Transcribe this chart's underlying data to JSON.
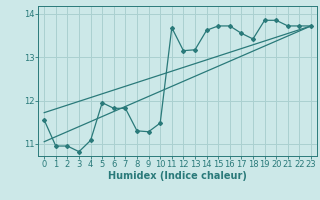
{
  "title": "",
  "xlabel": "Humidex (Indice chaleur)",
  "ylabel": "",
  "bg_color": "#cce8e8",
  "grid_color": "#aad0d0",
  "line_color": "#2a7a7a",
  "xlim": [
    -0.5,
    23.5
  ],
  "ylim": [
    10.72,
    14.18
  ],
  "yticks": [
    11,
    12,
    13,
    14
  ],
  "xticks": [
    0,
    1,
    2,
    3,
    4,
    5,
    6,
    7,
    8,
    9,
    10,
    11,
    12,
    13,
    14,
    15,
    16,
    17,
    18,
    19,
    20,
    21,
    22,
    23
  ],
  "scatter_x": [
    0,
    1,
    2,
    3,
    4,
    5,
    6,
    7,
    8,
    9,
    10,
    11,
    12,
    13,
    14,
    15,
    16,
    17,
    18,
    19,
    20,
    21,
    22,
    23
  ],
  "scatter_y": [
    11.55,
    10.95,
    10.95,
    10.82,
    11.08,
    11.95,
    11.82,
    11.82,
    11.3,
    11.28,
    11.48,
    13.68,
    13.15,
    13.17,
    13.62,
    13.72,
    13.72,
    13.55,
    13.42,
    13.85,
    13.85,
    13.72,
    13.72,
    13.72
  ],
  "line1_x": [
    0,
    23
  ],
  "line1_y": [
    11.05,
    13.72
  ],
  "line2_x": [
    0,
    23
  ],
  "line2_y": [
    11.72,
    13.72
  ],
  "font_size_xlabel": 7,
  "font_size_tick": 6,
  "marker": "D",
  "marker_size": 2.0,
  "line_width": 0.9
}
